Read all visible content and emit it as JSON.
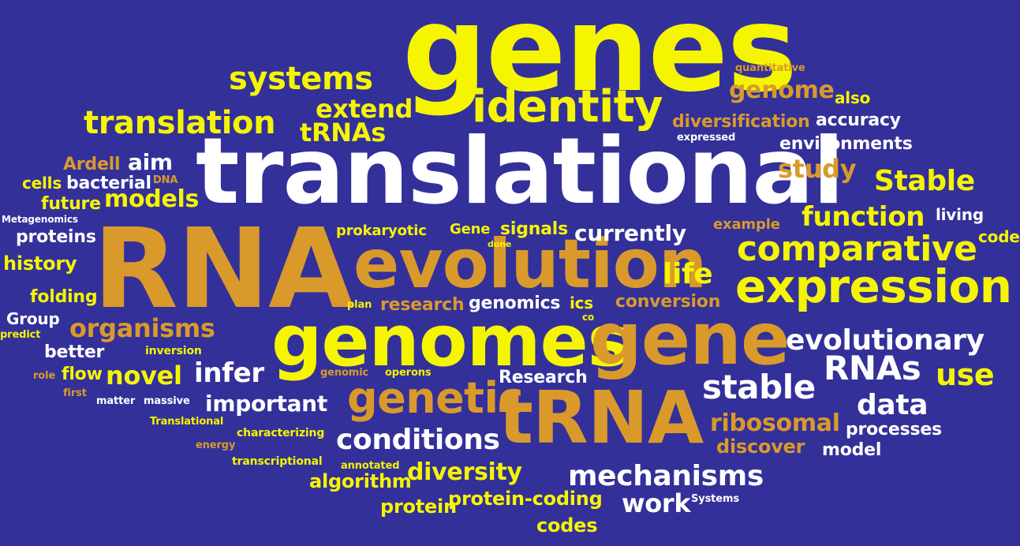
{
  "background": "#33309a",
  "palette": {
    "yellow": "#f5f500",
    "orange": "#d99a2b",
    "white": "#ffffff"
  },
  "words": [
    {
      "text": "genes",
      "color": "yellow"
    },
    {
      "text": "translational",
      "color": "white"
    },
    {
      "text": "RNA",
      "color": "orange"
    },
    {
      "text": "evolution",
      "color": "orange"
    },
    {
      "text": "genomes",
      "color": "yellow"
    },
    {
      "text": "gene",
      "color": "orange"
    },
    {
      "text": "tRNA",
      "color": "orange"
    },
    {
      "text": "expression",
      "color": "yellow"
    },
    {
      "text": "identity",
      "color": "yellow"
    },
    {
      "text": "comparative",
      "color": "yellow"
    },
    {
      "text": "translation",
      "color": "yellow"
    },
    {
      "text": "systems",
      "color": "yellow"
    },
    {
      "text": "genetic",
      "color": "orange"
    },
    {
      "text": "stable",
      "color": "white"
    },
    {
      "text": "RNAs",
      "color": "white"
    },
    {
      "text": "evolutionary",
      "color": "white"
    },
    {
      "text": "mechanisms",
      "color": "white"
    },
    {
      "text": "conditions",
      "color": "white"
    },
    {
      "text": "function",
      "color": "yellow"
    },
    {
      "text": "data",
      "color": "white"
    },
    {
      "text": "Stable",
      "color": "yellow"
    },
    {
      "text": "study",
      "color": "orange"
    },
    {
      "text": "use",
      "color": "yellow"
    },
    {
      "text": "life",
      "color": "yellow"
    },
    {
      "text": "organisms",
      "color": "orange"
    },
    {
      "text": "novel",
      "color": "yellow"
    },
    {
      "text": "infer",
      "color": "white"
    },
    {
      "text": "important",
      "color": "white"
    },
    {
      "text": "ribosomal",
      "color": "orange"
    },
    {
      "text": "diversity",
      "color": "yellow"
    },
    {
      "text": "tRNAs",
      "color": "yellow"
    },
    {
      "text": "extend",
      "color": "yellow"
    },
    {
      "text": "genome",
      "color": "orange"
    },
    {
      "text": "models",
      "color": "yellow"
    },
    {
      "text": "currently",
      "color": "white"
    },
    {
      "text": "work",
      "color": "white"
    },
    {
      "text": "diversification",
      "color": "orange"
    },
    {
      "text": "aim",
      "color": "white"
    },
    {
      "text": "algorithm",
      "color": "yellow"
    },
    {
      "text": "protein-coding",
      "color": "yellow"
    },
    {
      "text": "protein",
      "color": "yellow"
    },
    {
      "text": "discover",
      "color": "orange"
    },
    {
      "text": "processes",
      "color": "white"
    },
    {
      "text": "model",
      "color": "white"
    },
    {
      "text": "accuracy",
      "color": "white"
    },
    {
      "text": "environments",
      "color": "white"
    },
    {
      "text": "codes",
      "color": "yellow"
    },
    {
      "text": "Research",
      "color": "white"
    },
    {
      "text": "research",
      "color": "orange"
    },
    {
      "text": "genomics",
      "color": "white"
    },
    {
      "text": "conversion",
      "color": "orange"
    },
    {
      "text": "proteins",
      "color": "white"
    },
    {
      "text": "history",
      "color": "yellow"
    },
    {
      "text": "folding",
      "color": "yellow"
    },
    {
      "text": "bacterial",
      "color": "white"
    },
    {
      "text": "Ardell",
      "color": "orange"
    },
    {
      "text": "future",
      "color": "yellow"
    },
    {
      "text": "better",
      "color": "white"
    },
    {
      "text": "flow",
      "color": "yellow"
    },
    {
      "text": "Group",
      "color": "white"
    },
    {
      "text": "prokaryotic",
      "color": "yellow"
    },
    {
      "text": "Gene",
      "color": "yellow"
    },
    {
      "text": "signals",
      "color": "yellow"
    },
    {
      "text": "example",
      "color": "orange"
    },
    {
      "text": "living",
      "color": "white"
    },
    {
      "text": "also",
      "color": "yellow"
    },
    {
      "text": "cells",
      "color": "yellow"
    },
    {
      "text": "code",
      "color": "yellow"
    },
    {
      "text": "ics",
      "color": "yellow"
    },
    {
      "text": "quantitative",
      "color": "orange"
    },
    {
      "text": "expressed",
      "color": "white"
    },
    {
      "text": "Metagenomics",
      "color": "white"
    },
    {
      "text": "DNA",
      "color": "orange"
    },
    {
      "text": "done",
      "color": "yellow"
    },
    {
      "text": "plan",
      "color": "yellow"
    },
    {
      "text": "co",
      "color": "yellow"
    },
    {
      "text": "predict",
      "color": "yellow"
    },
    {
      "text": "inversion",
      "color": "yellow"
    },
    {
      "text": "role",
      "color": "orange"
    },
    {
      "text": "first",
      "color": "orange"
    },
    {
      "text": "matter",
      "color": "white"
    },
    {
      "text": "massive",
      "color": "white"
    },
    {
      "text": "genomic",
      "color": "orange"
    },
    {
      "text": "operons",
      "color": "yellow"
    },
    {
      "text": "Translational",
      "color": "yellow"
    },
    {
      "text": "characterizing",
      "color": "yellow"
    },
    {
      "text": "energy",
      "color": "orange"
    },
    {
      "text": "transcriptional",
      "color": "yellow"
    },
    {
      "text": "annotated",
      "color": "yellow"
    },
    {
      "text": "Systems",
      "color": "white"
    }
  ]
}
